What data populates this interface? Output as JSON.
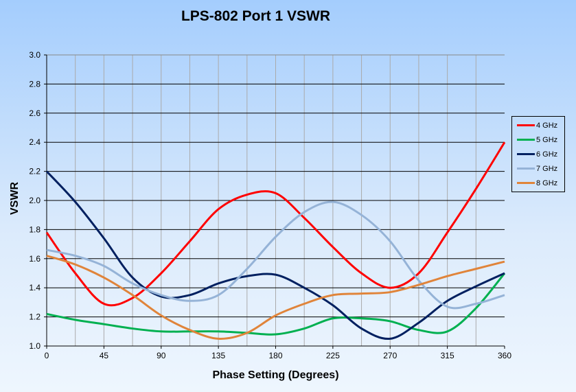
{
  "chart_data": {
    "type": "line",
    "title": "LPS-802 Port 1 VSWR",
    "xlabel": "Phase Setting  (Degrees)",
    "ylabel": "VSWR",
    "xlim": [
      0,
      360
    ],
    "ylim": [
      1.0,
      3.0
    ],
    "xticks": [
      "0",
      "45",
      "90",
      "135",
      "180",
      "225",
      "270",
      "315",
      "360"
    ],
    "yticks": [
      "1.0",
      "1.2",
      "1.4",
      "1.6",
      "1.8",
      "2.0",
      "2.2",
      "2.4",
      "2.6",
      "2.8",
      "3.0"
    ],
    "grid": true,
    "legend_position": "right",
    "x": [
      0,
      22.5,
      45,
      67.5,
      90,
      112.5,
      135,
      157.5,
      180,
      202.5,
      225,
      247.5,
      270,
      292.5,
      315,
      337.5,
      360
    ],
    "series": [
      {
        "name": "4 GHz",
        "color": "#ff0000",
        "values": [
          1.78,
          1.5,
          1.29,
          1.33,
          1.5,
          1.72,
          1.94,
          2.04,
          2.05,
          1.88,
          1.68,
          1.5,
          1.4,
          1.5,
          1.78,
          2.08,
          2.4
        ]
      },
      {
        "name": "5 GHz",
        "color": "#00b050",
        "values": [
          1.22,
          1.18,
          1.15,
          1.12,
          1.1,
          1.1,
          1.1,
          1.09,
          1.08,
          1.12,
          1.19,
          1.19,
          1.17,
          1.11,
          1.1,
          1.26,
          1.5
        ]
      },
      {
        "name": "6 GHz",
        "color": "#002060",
        "values": [
          2.2,
          1.99,
          1.74,
          1.47,
          1.34,
          1.35,
          1.43,
          1.48,
          1.49,
          1.4,
          1.28,
          1.12,
          1.05,
          1.16,
          1.31,
          1.41,
          1.5
        ]
      },
      {
        "name": "7 GHz",
        "color": "#95b3d7",
        "values": [
          1.66,
          1.62,
          1.55,
          1.43,
          1.35,
          1.31,
          1.35,
          1.53,
          1.75,
          1.92,
          1.99,
          1.9,
          1.72,
          1.45,
          1.27,
          1.29,
          1.35
        ]
      },
      {
        "name": "8 GHz",
        "color": "#e0843a",
        "values": [
          1.62,
          1.56,
          1.47,
          1.35,
          1.21,
          1.11,
          1.05,
          1.09,
          1.21,
          1.29,
          1.35,
          1.36,
          1.37,
          1.42,
          1.48,
          1.53,
          1.58
        ]
      }
    ]
  }
}
